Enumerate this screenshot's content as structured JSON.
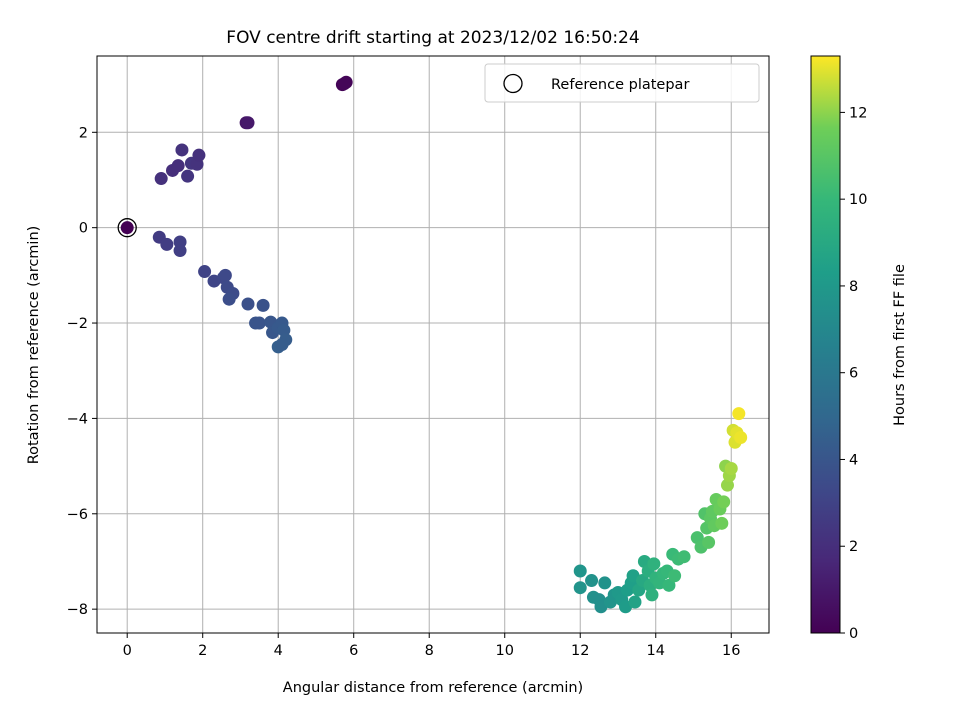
{
  "chart_data": {
    "type": "scatter",
    "title": "FOV centre drift starting at 2023/12/02 16:50:24",
    "xlabel": "Angular distance from reference (arcmin)",
    "ylabel": "Rotation from reference (arcmin)",
    "xlim": [
      -0.8,
      17.0
    ],
    "ylim": [
      -8.5,
      3.6
    ],
    "xticks": [
      0,
      2,
      4,
      6,
      8,
      10,
      12,
      14,
      16
    ],
    "yticks": [
      2,
      0,
      -2,
      -4,
      -6,
      -8
    ],
    "grid": true,
    "legend": {
      "position": "upper-right",
      "entries": [
        "Reference platepar"
      ]
    },
    "colorbar": {
      "label": "Hours from first FF file",
      "range": [
        0,
        13.3
      ],
      "ticks": [
        0,
        2,
        4,
        6,
        8,
        10,
        12
      ],
      "colormap": "viridis"
    },
    "reference": {
      "x": 0,
      "y": 0,
      "label": "Reference platepar"
    },
    "points": [
      {
        "x": 0,
        "y": 0,
        "t": 0.0
      },
      {
        "x": 5.7,
        "y": 3.0,
        "t": 0.1
      },
      {
        "x": 5.8,
        "y": 3.05,
        "t": 0.15
      },
      {
        "x": 5.75,
        "y": 3.02,
        "t": 0.2
      },
      {
        "x": 3.15,
        "y": 2.2,
        "t": 0.9
      },
      {
        "x": 3.2,
        "y": 2.2,
        "t": 1.0
      },
      {
        "x": 0.9,
        "y": 1.03,
        "t": 2.1
      },
      {
        "x": 1.2,
        "y": 1.2,
        "t": 2.0
      },
      {
        "x": 1.35,
        "y": 1.3,
        "t": 2.0
      },
      {
        "x": 1.45,
        "y": 1.63,
        "t": 2.2
      },
      {
        "x": 1.6,
        "y": 1.08,
        "t": 2.3
      },
      {
        "x": 1.7,
        "y": 1.35,
        "t": 2.3
      },
      {
        "x": 1.85,
        "y": 1.33,
        "t": 2.2
      },
      {
        "x": 1.9,
        "y": 1.52,
        "t": 2.1
      },
      {
        "x": 0.85,
        "y": -0.2,
        "t": 2.6
      },
      {
        "x": 1.05,
        "y": -0.35,
        "t": 2.7
      },
      {
        "x": 1.4,
        "y": -0.3,
        "t": 2.8
      },
      {
        "x": 1.4,
        "y": -0.48,
        "t": 2.8
      },
      {
        "x": 2.05,
        "y": -0.92,
        "t": 3.0
      },
      {
        "x": 2.3,
        "y": -1.12,
        "t": 3.1
      },
      {
        "x": 2.55,
        "y": -1.05,
        "t": 3.2
      },
      {
        "x": 2.6,
        "y": -1.0,
        "t": 3.3
      },
      {
        "x": 2.65,
        "y": -1.25,
        "t": 3.4
      },
      {
        "x": 2.8,
        "y": -1.38,
        "t": 3.5
      },
      {
        "x": 2.7,
        "y": -1.5,
        "t": 3.6
      },
      {
        "x": 3.2,
        "y": -1.6,
        "t": 3.7
      },
      {
        "x": 3.6,
        "y": -1.63,
        "t": 3.8
      },
      {
        "x": 3.4,
        "y": -2.0,
        "t": 3.9
      },
      {
        "x": 3.5,
        "y": -2.0,
        "t": 3.9
      },
      {
        "x": 3.8,
        "y": -1.98,
        "t": 4.0
      },
      {
        "x": 3.85,
        "y": -2.2,
        "t": 4.1
      },
      {
        "x": 4.0,
        "y": -2.1,
        "t": 4.2
      },
      {
        "x": 4.1,
        "y": -2.0,
        "t": 4.2
      },
      {
        "x": 4.15,
        "y": -2.15,
        "t": 4.3
      },
      {
        "x": 4.2,
        "y": -2.35,
        "t": 4.4
      },
      {
        "x": 4.0,
        "y": -2.5,
        "t": 4.5
      },
      {
        "x": 4.1,
        "y": -2.45,
        "t": 4.4
      },
      {
        "x": 12.0,
        "y": -7.2,
        "t": 7.8
      },
      {
        "x": 12.0,
        "y": -7.55,
        "t": 7.7
      },
      {
        "x": 12.3,
        "y": -7.4,
        "t": 7.6
      },
      {
        "x": 12.35,
        "y": -7.75,
        "t": 7.5
      },
      {
        "x": 12.5,
        "y": -7.8,
        "t": 7.4
      },
      {
        "x": 12.55,
        "y": -7.95,
        "t": 7.4
      },
      {
        "x": 12.65,
        "y": -7.45,
        "t": 7.6
      },
      {
        "x": 12.8,
        "y": -7.85,
        "t": 7.7
      },
      {
        "x": 12.9,
        "y": -7.7,
        "t": 7.8
      },
      {
        "x": 13.0,
        "y": -7.65,
        "t": 8.0
      },
      {
        "x": 13.1,
        "y": -7.8,
        "t": 8.1
      },
      {
        "x": 13.2,
        "y": -7.95,
        "t": 8.2
      },
      {
        "x": 13.25,
        "y": -7.6,
        "t": 8.3
      },
      {
        "x": 13.35,
        "y": -7.45,
        "t": 8.4
      },
      {
        "x": 13.4,
        "y": -7.3,
        "t": 8.5
      },
      {
        "x": 13.45,
        "y": -7.85,
        "t": 8.6
      },
      {
        "x": 13.55,
        "y": -7.6,
        "t": 8.8
      },
      {
        "x": 13.65,
        "y": -7.4,
        "t": 9.0
      },
      {
        "x": 13.7,
        "y": -7.0,
        "t": 9.1
      },
      {
        "x": 13.8,
        "y": -7.2,
        "t": 9.3
      },
      {
        "x": 13.85,
        "y": -7.5,
        "t": 9.4
      },
      {
        "x": 13.9,
        "y": -7.7,
        "t": 9.5
      },
      {
        "x": 13.95,
        "y": -7.05,
        "t": 9.6
      },
      {
        "x": 14.0,
        "y": -7.35,
        "t": 9.7
      },
      {
        "x": 14.1,
        "y": -7.45,
        "t": 9.8
      },
      {
        "x": 14.2,
        "y": -7.25,
        "t": 9.9
      },
      {
        "x": 14.3,
        "y": -7.2,
        "t": 10.0
      },
      {
        "x": 14.35,
        "y": -7.5,
        "t": 10.0
      },
      {
        "x": 14.45,
        "y": -6.85,
        "t": 10.1
      },
      {
        "x": 14.5,
        "y": -7.3,
        "t": 10.2
      },
      {
        "x": 14.6,
        "y": -6.95,
        "t": 10.2
      },
      {
        "x": 14.75,
        "y": -6.9,
        "t": 10.3
      },
      {
        "x": 15.1,
        "y": -6.5,
        "t": 10.6
      },
      {
        "x": 15.2,
        "y": -6.7,
        "t": 10.7
      },
      {
        "x": 15.3,
        "y": -6.0,
        "t": 10.8
      },
      {
        "x": 15.35,
        "y": -6.3,
        "t": 10.9
      },
      {
        "x": 15.4,
        "y": -6.6,
        "t": 11.0
      },
      {
        "x": 15.45,
        "y": -6.1,
        "t": 11.1
      },
      {
        "x": 15.5,
        "y": -5.95,
        "t": 11.2
      },
      {
        "x": 15.55,
        "y": -6.25,
        "t": 11.3
      },
      {
        "x": 15.6,
        "y": -5.7,
        "t": 11.4
      },
      {
        "x": 15.7,
        "y": -5.9,
        "t": 11.5
      },
      {
        "x": 15.75,
        "y": -6.2,
        "t": 11.6
      },
      {
        "x": 15.8,
        "y": -5.75,
        "t": 11.7
      },
      {
        "x": 15.85,
        "y": -5.0,
        "t": 12.0
      },
      {
        "x": 15.9,
        "y": -5.4,
        "t": 12.1
      },
      {
        "x": 15.95,
        "y": -5.2,
        "t": 12.2
      },
      {
        "x": 16.0,
        "y": -5.05,
        "t": 12.3
      },
      {
        "x": 16.05,
        "y": -4.25,
        "t": 12.8
      },
      {
        "x": 16.1,
        "y": -4.5,
        "t": 12.9
      },
      {
        "x": 16.15,
        "y": -4.3,
        "t": 13.0
      },
      {
        "x": 16.2,
        "y": -3.9,
        "t": 13.2
      },
      {
        "x": 16.25,
        "y": -4.4,
        "t": 13.1
      }
    ]
  }
}
